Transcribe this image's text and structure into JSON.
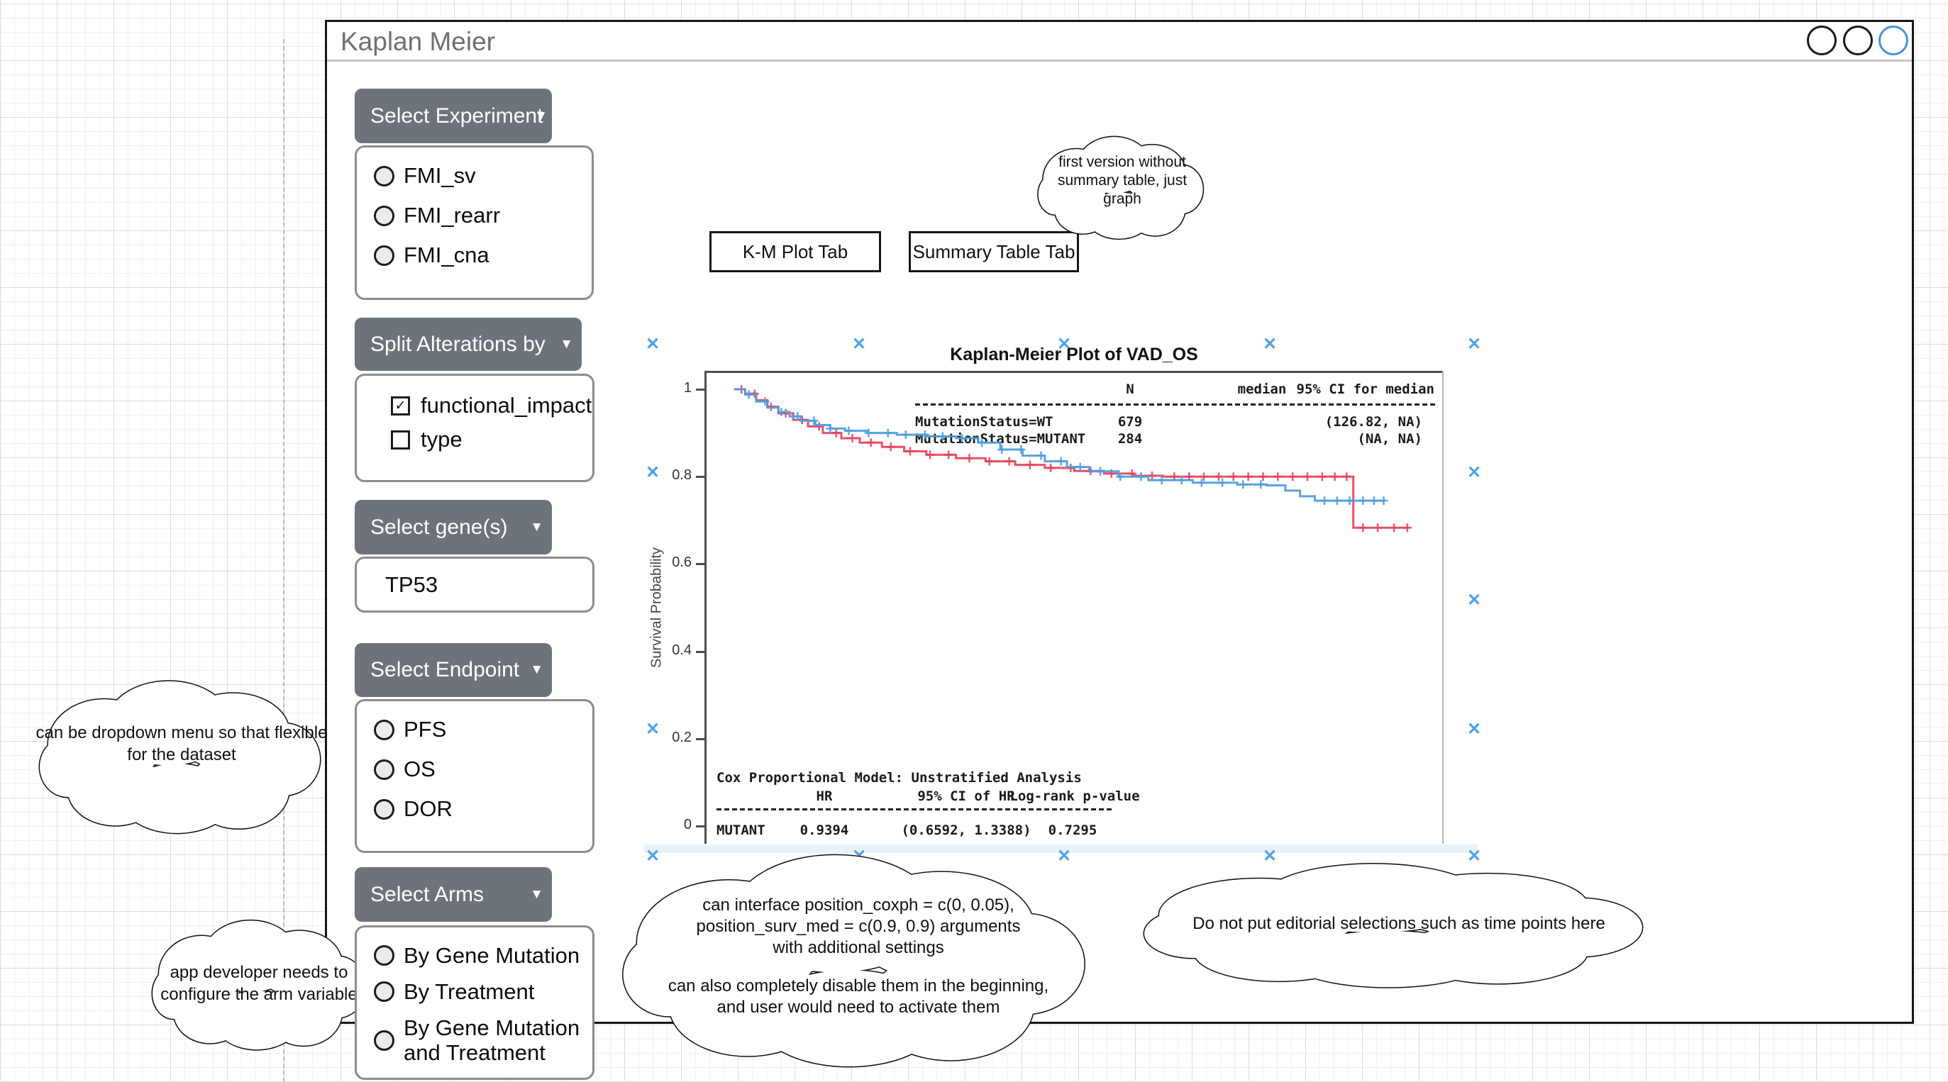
{
  "window": {
    "title": "Kaplan Meier"
  },
  "window_controls": {
    "count": 3,
    "inactive_color": "#1a1a1a",
    "active_color": "#4a90e2"
  },
  "sidebar": {
    "experiment": {
      "button_label": "Select Experiment",
      "options": [
        "FMI_sv",
        "FMI_rearr",
        "FMI_cna"
      ]
    },
    "split_alterations": {
      "button_label": "Split Alterations by",
      "options": [
        {
          "label": "functional_impact",
          "checked": true
        },
        {
          "label": "type",
          "checked": false
        }
      ]
    },
    "genes": {
      "button_label": "Select gene(s)",
      "value": "TP53"
    },
    "endpoint": {
      "button_label": "Select Endpoint",
      "options": [
        "PFS",
        "OS",
        "DOR"
      ]
    },
    "arms": {
      "button_label": "Select Arms",
      "options": [
        "By Gene Mutation",
        "By Treatment",
        "By Gene Mutation and Treatment"
      ]
    }
  },
  "tabs": [
    {
      "label": "K-M Plot Tab"
    },
    {
      "label": "Summary Table Tab"
    }
  ],
  "annotations": [
    {
      "id": "note-top",
      "lines": [
        "first version without",
        "summary table, just",
        "graph"
      ]
    },
    {
      "id": "note-left",
      "lines": [
        "can be dropdown menu so that flexible",
        "for the dataset"
      ]
    },
    {
      "id": "note-arms",
      "lines": [
        "app developer needs to",
        "configure the arm variable"
      ]
    },
    {
      "id": "note-positions",
      "lines": [
        "can interface position_coxph = c(0, 0.05),",
        "position_surv_med = c(0.9, 0.9) arguments",
        "with additional settings",
        "",
        "can also completely disable them in the beginning,",
        "and user would need to activate them"
      ]
    },
    {
      "id": "note-editorial",
      "lines": [
        "Do not put editorial selections such as time points here"
      ]
    }
  ],
  "chart_data": {
    "type": "line",
    "subtype": "kaplan-meier-step",
    "title": "Kaplan-Meier Plot of VAD_OS",
    "xlabel": "",
    "ylabel": "Survival Probability",
    "ylim": [
      0,
      1.05
    ],
    "grid": false,
    "legend_position": "none",
    "yticks": {
      "values": [
        1,
        0.8,
        0.6,
        0.4,
        0.2,
        0
      ],
      "labels": [
        "1",
        "0.8",
        "0.6",
        "0.4",
        "0.2",
        "0"
      ]
    },
    "summary_table": {
      "columns": [
        "N",
        "median",
        "95% CI for median"
      ],
      "rows": [
        {
          "group": "MutationStatus=WT",
          "N": "679",
          "median": "",
          "ci": "(126.82, NA)"
        },
        {
          "group": "MutationStatus=MUTANT",
          "N": "284",
          "median": "",
          "ci": "(NA, NA)"
        }
      ]
    },
    "cox_table": {
      "title": "Cox Proportional Model: Unstratified Analysis",
      "columns": [
        "HR",
        "95% CI of HR",
        "Log-rank p-value"
      ],
      "rows": [
        {
          "group": "MUTANT",
          "hr": "0.9394",
          "ci": "(0.6592, 1.3388)",
          "p": "0.7295"
        }
      ]
    },
    "series": [
      {
        "name": "red-curve",
        "color": "#e8415c",
        "points": [
          [
            0.04,
            1.0
          ],
          [
            0.055,
            0.99
          ],
          [
            0.07,
            0.975
          ],
          [
            0.085,
            0.96
          ],
          [
            0.1,
            0.945
          ],
          [
            0.12,
            0.93
          ],
          [
            0.14,
            0.915
          ],
          [
            0.16,
            0.9
          ],
          [
            0.185,
            0.888
          ],
          [
            0.21,
            0.878
          ],
          [
            0.24,
            0.868
          ],
          [
            0.27,
            0.858
          ],
          [
            0.3,
            0.85
          ],
          [
            0.34,
            0.842
          ],
          [
            0.38,
            0.835
          ],
          [
            0.42,
            0.827
          ],
          [
            0.46,
            0.82
          ],
          [
            0.5,
            0.813
          ],
          [
            0.54,
            0.807
          ],
          [
            0.58,
            0.802
          ],
          [
            0.62,
            0.8
          ],
          [
            0.877,
            0.683
          ],
          [
            0.952,
            0.683
          ]
        ],
        "censors": [
          0.05,
          0.068,
          0.09,
          0.11,
          0.132,
          0.155,
          0.178,
          0.2,
          0.225,
          0.252,
          0.278,
          0.305,
          0.33,
          0.358,
          0.385,
          0.412,
          0.44,
          0.468,
          0.495,
          0.522,
          0.55,
          0.578,
          0.605,
          0.635,
          0.655,
          0.675,
          0.695,
          0.715,
          0.735,
          0.755,
          0.775,
          0.795,
          0.815,
          0.835,
          0.852,
          0.868,
          0.89,
          0.91,
          0.932,
          0.95
        ]
      },
      {
        "name": "blue-curve",
        "color": "#4a9de0",
        "points": [
          [
            0.04,
            1.0
          ],
          [
            0.055,
            0.988
          ],
          [
            0.07,
            0.972
          ],
          [
            0.085,
            0.958
          ],
          [
            0.1,
            0.948
          ],
          [
            0.115,
            0.938
          ],
          [
            0.13,
            0.928
          ],
          [
            0.15,
            0.918
          ],
          [
            0.17,
            0.91
          ],
          [
            0.19,
            0.905
          ],
          [
            0.22,
            0.9
          ],
          [
            0.26,
            0.896
          ],
          [
            0.3,
            0.892
          ],
          [
            0.34,
            0.888
          ],
          [
            0.37,
            0.878
          ],
          [
            0.4,
            0.862
          ],
          [
            0.43,
            0.848
          ],
          [
            0.46,
            0.835
          ],
          [
            0.49,
            0.822
          ],
          [
            0.52,
            0.812
          ],
          [
            0.56,
            0.8
          ],
          [
            0.6,
            0.792
          ],
          [
            0.66,
            0.786
          ],
          [
            0.72,
            0.782
          ],
          [
            0.76,
            0.78
          ],
          [
            0.785,
            0.768
          ],
          [
            0.805,
            0.755
          ],
          [
            0.825,
            0.745
          ],
          [
            0.92,
            0.745
          ]
        ],
        "censors": [
          0.06,
          0.082,
          0.104,
          0.126,
          0.148,
          0.17,
          0.195,
          0.222,
          0.248,
          0.272,
          0.298,
          0.322,
          0.348,
          0.375,
          0.402,
          0.428,
          0.455,
          0.482,
          0.508,
          0.535,
          0.562,
          0.59,
          0.618,
          0.645,
          0.672,
          0.7,
          0.728,
          0.752,
          0.838,
          0.855,
          0.872,
          0.89,
          0.905,
          0.918
        ]
      }
    ]
  }
}
